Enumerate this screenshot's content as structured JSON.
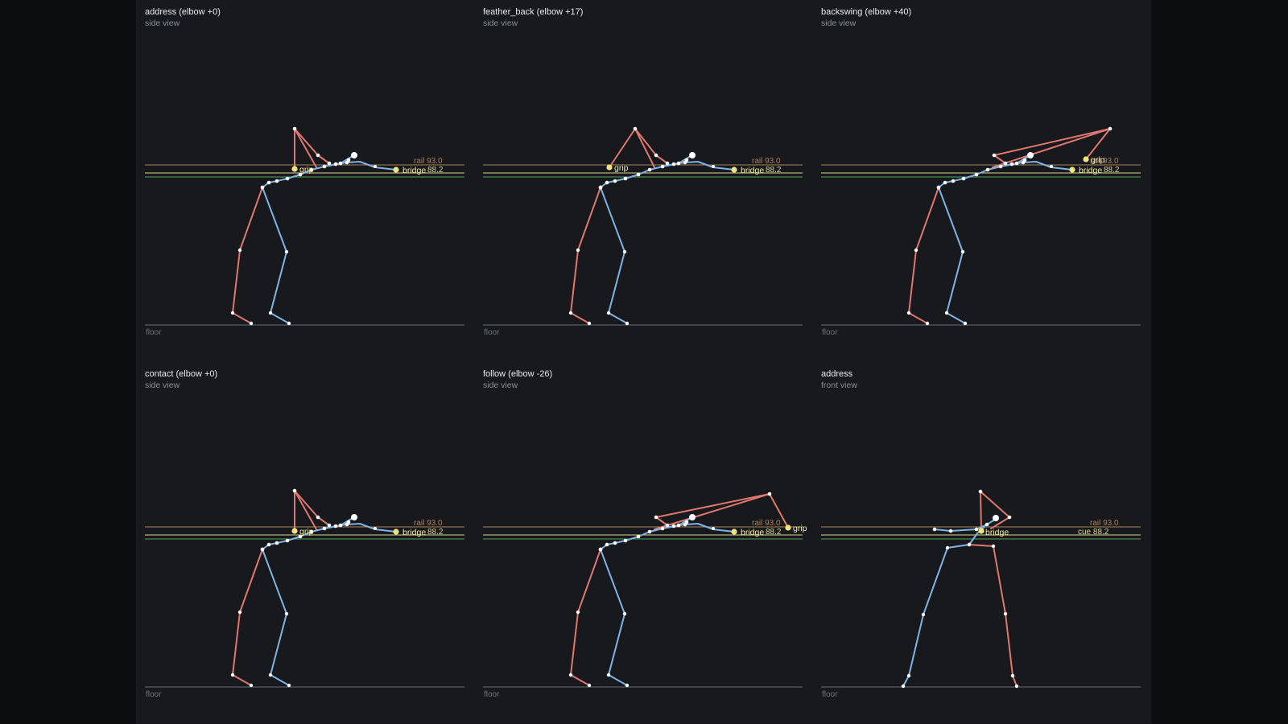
{
  "colors": {
    "background": "#17191d",
    "left_side": "#e0776e",
    "right_side": "#7fb3e8",
    "joint": "#ffffff",
    "marker": "#f2e27a",
    "rail_line": "#a8825a",
    "cue_line": "#d9d38a",
    "table_line": "#5a9e5e",
    "floor_line": "#6a6d73"
  },
  "panels": [
    {
      "id": "p1",
      "title": "address (elbow +0)",
      "subtitle": "side view",
      "pose": "address",
      "labels": {
        "grip": "grip",
        "bridge": "bridge",
        "rail": "rail 93.0",
        "cue": "88.2",
        "floor": "floor"
      }
    },
    {
      "id": "p2",
      "title": "feather_back (elbow +17)",
      "subtitle": "side view",
      "pose": "feather",
      "labels": {
        "grip": "grip",
        "bridge": "bridge",
        "rail": "rail 93.0",
        "cue": "88.2",
        "floor": "floor"
      }
    },
    {
      "id": "p3",
      "title": "backswing (elbow +40)",
      "subtitle": "side view",
      "pose": "backswing",
      "labels": {
        "grip": "grip",
        "bridge": "bridge",
        "rail": "rail 93.0",
        "cue": "88.2",
        "floor": "floor"
      }
    },
    {
      "id": "p4",
      "title": "contact (elbow +0)",
      "subtitle": "side view",
      "pose": "address",
      "labels": {
        "grip": "grip",
        "bridge": "bridge",
        "rail": "rail 93.0",
        "cue": "88.2",
        "floor": "floor"
      }
    },
    {
      "id": "p5",
      "title": "follow (elbow -26)",
      "subtitle": "side view",
      "pose": "follow",
      "labels": {
        "grip": "grip",
        "bridge": "bridge",
        "rail": "rail 93.0",
        "cue": "88.2",
        "floor": "floor"
      }
    },
    {
      "id": "p6",
      "title": "address",
      "subtitle": "front view",
      "pose": "front",
      "labels": {
        "grip": "",
        "bridge": "bridge",
        "rail": "rail 93.0",
        "cue": "cue 88.2",
        "floor": "floor"
      }
    }
  ]
}
